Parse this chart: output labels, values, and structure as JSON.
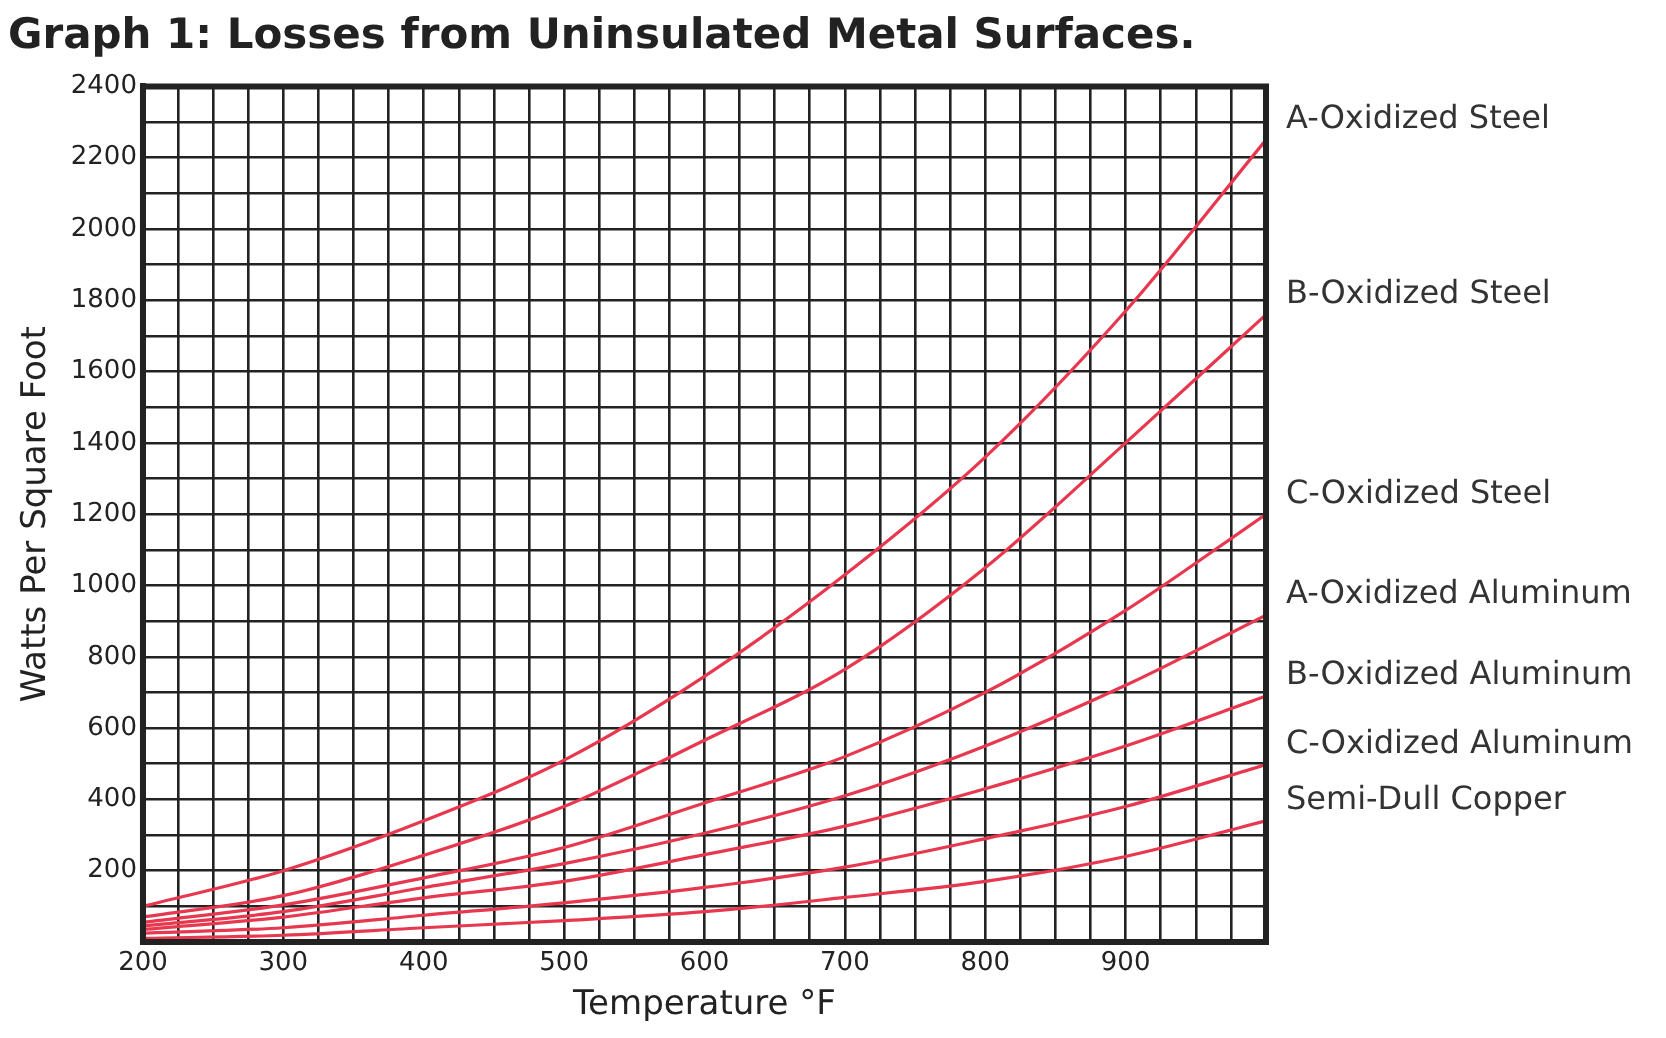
{
  "chart_data": {
    "type": "line",
    "title": "Graph 1: Losses from Uninsulated Metal Surfaces.",
    "xlabel": "Temperature °F",
    "ylabel": "Watts Per Square Foot",
    "x": [
      200,
      300,
      400,
      500,
      600,
      700,
      800,
      900,
      1000
    ],
    "series": [
      {
        "name": "A-Oxidized Steel",
        "color": "#e8384f",
        "values": [
          100,
          200,
          340,
          510,
          745,
          1030,
          1360,
          1770,
          2250
        ]
      },
      {
        "name": "B-Oxidized Steel",
        "color": "#e8384f",
        "values": [
          70,
          130,
          243,
          380,
          566,
          765,
          1050,
          1400,
          1760
        ]
      },
      {
        "name": "C-Oxidized Steel",
        "color": "#e8384f",
        "values": [
          55,
          104,
          180,
          265,
          390,
          520,
          700,
          930,
          1200
        ]
      },
      {
        "name": "A-Oxidized Aluminum",
        "color": "#e8384f",
        "values": [
          45,
          85,
          153,
          220,
          305,
          410,
          550,
          720,
          917
        ]
      },
      {
        "name": "B-Oxidized Aluminum",
        "color": "#e8384f",
        "values": [
          35,
          70,
          124,
          170,
          245,
          325,
          430,
          550,
          690
        ]
      },
      {
        "name": "C-Oxidized Aluminum",
        "color": "#e8384f",
        "values": [
          25,
          40,
          75,
          110,
          153,
          210,
          290,
          380,
          498
        ]
      },
      {
        "name": "Semi-Dull Copper",
        "color": "#e8384f",
        "values": [
          10,
          19,
          40,
          60,
          85,
          125,
          170,
          240,
          340
        ]
      }
    ],
    "xlim": [
      200,
      1000
    ],
    "xticks": [
      200,
      {
        "value": 225,
        "label": null
      },
      {
        "value": 250,
        "label": null
      },
      {
        "value": 275,
        "label": null
      },
      300,
      {
        "value": 325,
        "label": null
      },
      {
        "value": 350,
        "label": null
      },
      {
        "value": 375,
        "label": null
      },
      400,
      {
        "value": 425,
        "label": null
      },
      {
        "value": 450,
        "label": null
      },
      {
        "value": 475,
        "label": null
      },
      500,
      {
        "value": 525,
        "label": null
      },
      {
        "value": 550,
        "label": null
      },
      {
        "value": 575,
        "label": null
      },
      600,
      {
        "value": 625,
        "label": null
      },
      {
        "value": 650,
        "label": null
      },
      {
        "value": 675,
        "label": null
      },
      700,
      {
        "value": 725,
        "label": null
      },
      {
        "value": 750,
        "label": null
      },
      {
        "value": 775,
        "label": null
      },
      800,
      {
        "value": 825,
        "label": null
      },
      {
        "value": 850,
        "label": null
      },
      {
        "value": 875,
        "label": null
      },
      900,
      {
        "value": 925,
        "label": null
      },
      {
        "value": 950,
        "label": null
      },
      {
        "value": 975,
        "label": null
      },
      {
        "value": 1000,
        "label": null
      }
    ],
    "ylim": [
      0,
      2400
    ],
    "yticks": [
      {
        "value": 0,
        "label": null
      },
      {
        "value": 100,
        "label": null
      },
      200,
      {
        "value": 300,
        "label": null
      },
      400,
      {
        "value": 500,
        "label": null
      },
      600,
      {
        "value": 700,
        "label": null
      },
      800,
      {
        "value": 900,
        "label": null
      },
      1000,
      {
        "value": 1100,
        "label": null
      },
      1200,
      {
        "value": 1300,
        "label": null
      },
      1400,
      {
        "value": 1500,
        "label": null
      },
      1600,
      {
        "value": 1700,
        "label": null
      },
      1800,
      {
        "value": 1900,
        "label": null
      },
      2000,
      {
        "value": 2100,
        "label": null
      },
      2200,
      {
        "value": 2300,
        "label": null
      },
      2400
    ],
    "grid": true,
    "legend": "right",
    "marker": "none",
    "line_style": "solid"
  }
}
